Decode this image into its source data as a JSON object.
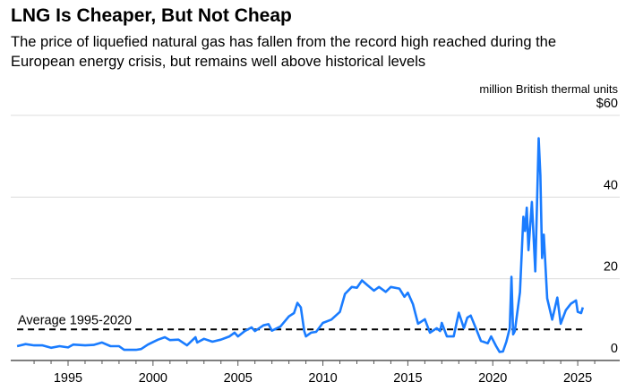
{
  "title": "LNG Is Cheaper, But Not Cheap",
  "subtitle_lines": [
    "The price of liquefied natural gas has fallen from the record high reached during the",
    "European energy crisis, but remains well above historical levels"
  ],
  "chart_data": {
    "type": "line",
    "unit_label": "million British thermal units",
    "ylim": [
      0,
      60
    ],
    "y_ticks": [
      0,
      20,
      40,
      60
    ],
    "y_tick_labels": [
      "0",
      "20",
      "40",
      "$60"
    ],
    "xlim": [
      1992,
      2026.5
    ],
    "x_ticks": [
      1995,
      2000,
      2005,
      2010,
      2015,
      2020,
      2025
    ],
    "x_tick_labels": [
      "1995",
      "2000",
      "2005",
      "2010",
      "2015",
      "2020",
      "2025"
    ],
    "grid": true,
    "line_color": "#1a7cff",
    "reference_line": {
      "label": "Average 1995-2020",
      "value": 7.6,
      "style": "dashed"
    },
    "series": [
      {
        "x": [
          1992.0,
          1992.5,
          1993.0,
          1993.5,
          1994.0,
          1994.5,
          1995.0,
          1995.3,
          1996.0,
          1996.5,
          1997.0,
          1997.5,
          1998.0,
          1998.3,
          1999.0,
          1999.3,
          1999.7,
          2000.0,
          2000.3,
          2000.7,
          2001.0,
          2001.5,
          2002.0,
          2002.5,
          2002.6,
          2003.0,
          2003.5,
          2004.0,
          2004.5,
          2004.8,
          2005.0,
          2005.4,
          2005.8,
          2006.0,
          2006.5,
          2006.8,
          2007.0,
          2007.5,
          2008.0,
          2008.3,
          2008.5,
          2008.7,
          2008.9,
          2009.0,
          2009.3,
          2009.6,
          2010.0,
          2010.5,
          2011.0,
          2011.3,
          2011.7,
          2012.0,
          2012.3,
          2012.6,
          2013.0,
          2013.3,
          2013.7,
          2014.0,
          2014.5,
          2014.8,
          2015.0,
          2015.3,
          2015.6,
          2016.0,
          2016.3,
          2016.7,
          2016.9,
          2017.0,
          2017.3,
          2017.7,
          2018.0,
          2018.3,
          2018.5,
          2018.7,
          2019.0,
          2019.3,
          2019.7,
          2019.9,
          2020.2,
          2020.4,
          2020.6,
          2020.8,
          2021.0,
          2021.1,
          2021.2,
          2021.3,
          2021.6,
          2021.8,
          2021.9,
          2022.0,
          2022.1,
          2022.3,
          2022.5,
          2022.7,
          2022.8,
          2022.9,
          2023.0,
          2023.2,
          2023.5,
          2023.8,
          2024.0,
          2024.3,
          2024.6,
          2024.9,
          2025.0,
          2025.2,
          2025.3
        ],
        "y": [
          3.5,
          4.0,
          3.7,
          3.7,
          3.1,
          3.5,
          3.2,
          3.9,
          3.7,
          3.8,
          4.4,
          3.5,
          3.5,
          2.6,
          2.6,
          2.8,
          3.9,
          4.5,
          5.1,
          5.7,
          5.0,
          5.1,
          3.7,
          5.7,
          4.4,
          5.3,
          4.6,
          5.1,
          5.9,
          6.8,
          5.9,
          7.2,
          8.1,
          7.2,
          8.6,
          8.9,
          7.3,
          8.3,
          10.8,
          11.6,
          14.1,
          13.0,
          7.2,
          5.9,
          6.8,
          7.0,
          9.2,
          10.0,
          11.9,
          16.3,
          18.0,
          17.8,
          19.6,
          18.5,
          17.1,
          18.0,
          16.8,
          18.0,
          17.6,
          15.6,
          16.6,
          13.8,
          9.0,
          10.1,
          6.8,
          7.9,
          7.2,
          9.2,
          5.9,
          5.9,
          11.7,
          7.9,
          10.5,
          11.0,
          7.9,
          4.8,
          4.2,
          5.9,
          3.5,
          2.1,
          2.2,
          4.6,
          7.9,
          20.5,
          6.4,
          7.2,
          16.7,
          35.2,
          31.7,
          37.4,
          27.0,
          38.8,
          21.8,
          54.4,
          45.3,
          25.1,
          30.8,
          15.2,
          10.0,
          15.4,
          9.0,
          12.3,
          13.9,
          14.7,
          11.9,
          11.6,
          13.0
        ]
      }
    ]
  }
}
